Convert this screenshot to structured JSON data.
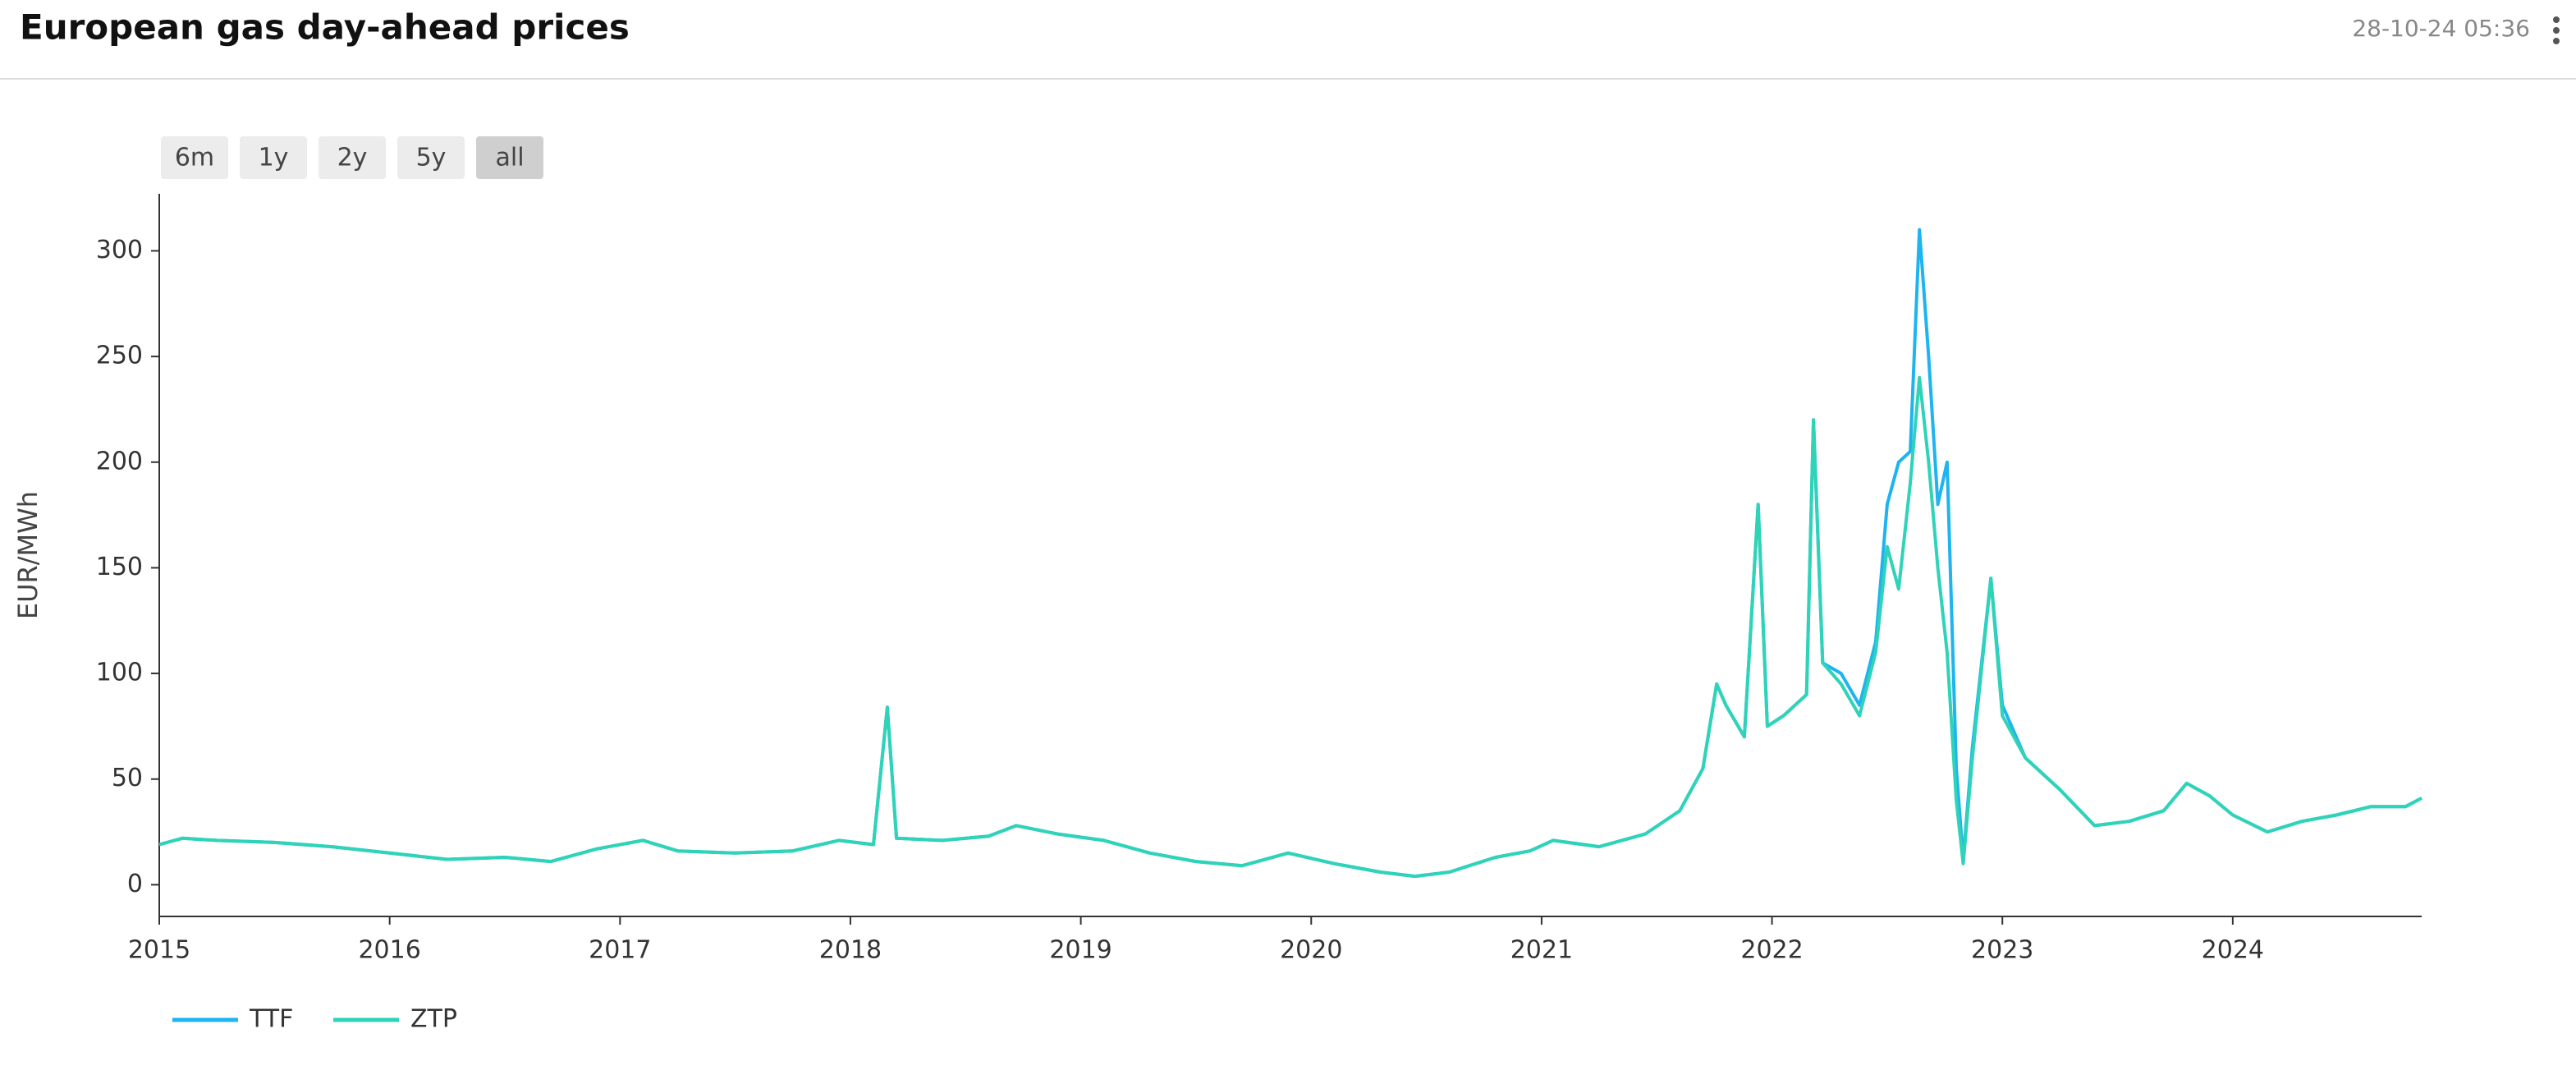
{
  "header": {
    "timestamp": "28-10-24 05:36"
  },
  "range_buttons": [
    "6m",
    "1y",
    "2y",
    "5y",
    "all"
  ],
  "chart_data": {
    "type": "line",
    "title": "European gas day-ahead prices",
    "y_label": "EUR/MWh",
    "x": [
      2015.0,
      2015.1,
      2015.25,
      2015.5,
      2015.75,
      2016.0,
      2016.25,
      2016.5,
      2016.7,
      2016.9,
      2017.1,
      2017.25,
      2017.5,
      2017.75,
      2017.95,
      2018.1,
      2018.16,
      2018.2,
      2018.4,
      2018.6,
      2018.72,
      2018.9,
      2019.1,
      2019.3,
      2019.5,
      2019.7,
      2019.9,
      2020.1,
      2020.3,
      2020.45,
      2020.6,
      2020.8,
      2020.95,
      2021.05,
      2021.25,
      2021.45,
      2021.6,
      2021.7,
      2021.76,
      2021.8,
      2021.88,
      2021.94,
      2021.98,
      2022.05,
      2022.15,
      2022.18,
      2022.22,
      2022.3,
      2022.38,
      2022.45,
      2022.5,
      2022.55,
      2022.6,
      2022.64,
      2022.68,
      2022.72,
      2022.76,
      2022.8,
      2022.83,
      2022.87,
      2022.95,
      2023.0,
      2023.1,
      2023.25,
      2023.4,
      2023.55,
      2023.7,
      2023.8,
      2023.9,
      2024.0,
      2024.15,
      2024.3,
      2024.45,
      2024.6,
      2024.75,
      2024.82
    ],
    "series": [
      {
        "name": "TTF",
        "color": "#1eb4f0",
        "values": [
          19,
          22,
          21,
          20,
          18,
          15,
          12,
          13,
          11,
          17,
          21,
          16,
          15,
          16,
          21,
          19,
          84,
          22,
          21,
          23,
          28,
          24,
          21,
          15,
          11,
          9,
          15,
          10,
          6,
          4,
          6,
          13,
          16,
          21,
          18,
          24,
          35,
          55,
          95,
          85,
          70,
          180,
          75,
          80,
          90,
          220,
          105,
          100,
          85,
          115,
          180,
          200,
          205,
          310,
          250,
          180,
          200,
          55,
          12,
          65,
          145,
          85,
          60,
          45,
          28,
          30,
          35,
          48,
          42,
          33,
          25,
          30,
          33,
          37,
          37,
          41
        ]
      },
      {
        "name": "ZTP",
        "color": "#2fd3b8",
        "values": [
          19,
          22,
          21,
          20,
          18,
          15,
          12,
          13,
          11,
          17,
          21,
          16,
          15,
          16,
          21,
          19,
          84,
          22,
          21,
          23,
          28,
          24,
          21,
          15,
          11,
          9,
          15,
          10,
          6,
          4,
          6,
          13,
          16,
          21,
          18,
          24,
          35,
          55,
          95,
          85,
          70,
          180,
          75,
          80,
          90,
          220,
          105,
          95,
          80,
          110,
          160,
          140,
          190,
          240,
          200,
          150,
          110,
          40,
          10,
          60,
          145,
          80,
          60,
          45,
          28,
          30,
          35,
          48,
          42,
          33,
          25,
          30,
          33,
          37,
          37,
          41
        ]
      }
    ],
    "xlim": [
      2015,
      2024.82
    ],
    "xticks": [
      2015,
      2016,
      2017,
      2018,
      2019,
      2020,
      2021,
      2022,
      2023,
      2024
    ],
    "ylim": [
      -15,
      327
    ],
    "yticks": [
      0,
      50,
      100,
      150,
      200,
      250,
      300
    ],
    "grid": false
  }
}
